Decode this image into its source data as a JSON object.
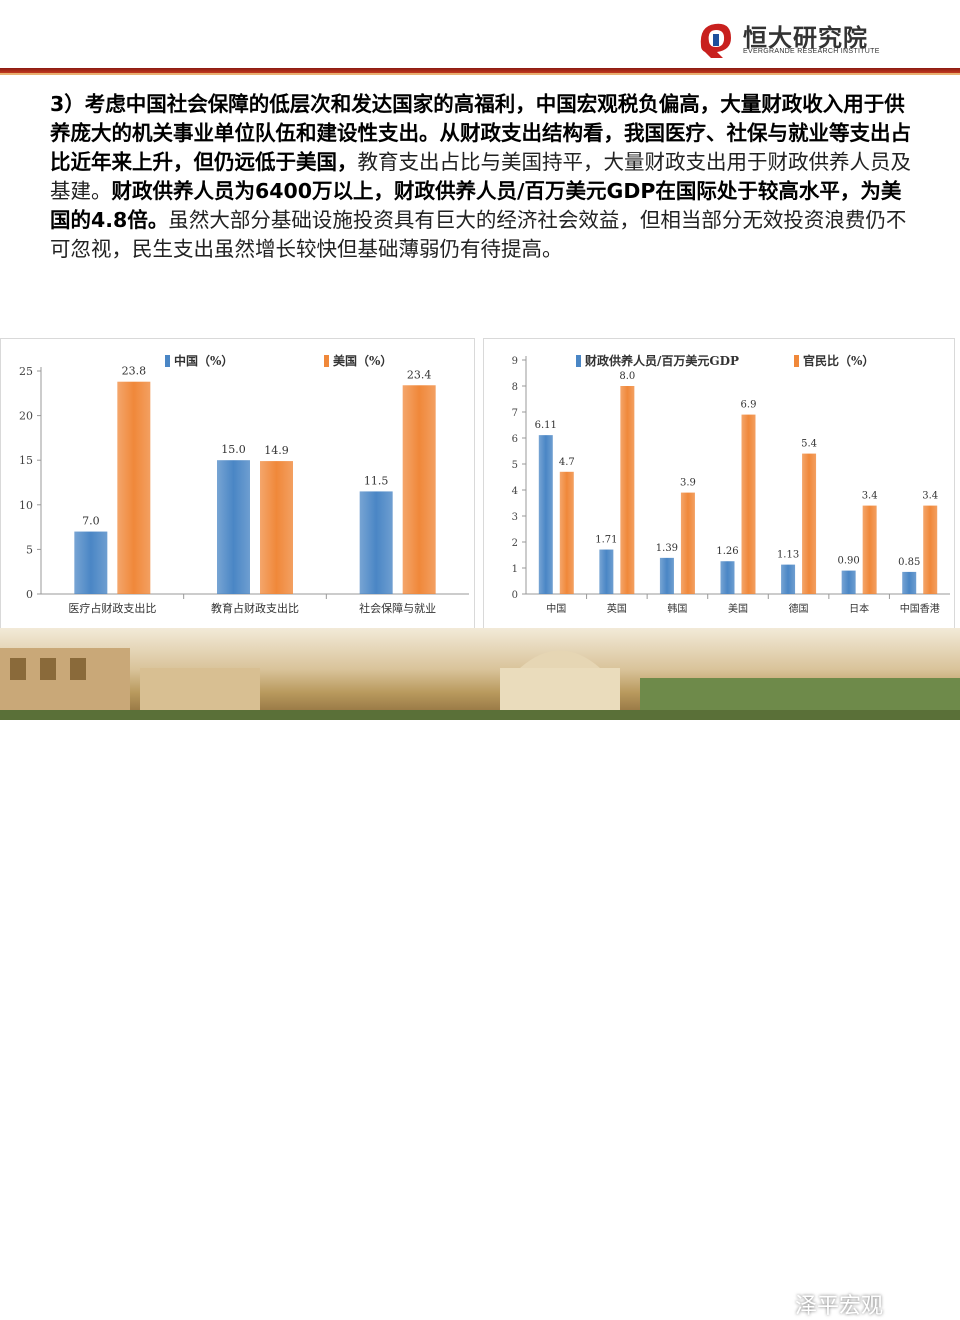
{
  "header": {
    "brand_cn": "恒大研究院",
    "brand_en": "EVERGRANDE RESEARCH INSTITUTE"
  },
  "paragraph": {
    "bold_part": "3）考虑中国社会保障的低层次和发达国家的高福利，中国宏观税负偏高，大量财政收入用于供养庞大的机关事业单位队伍和建设性支出。从财政支出结构看，我国医疗、社保与就业等支出占比近年来上升，但仍远低于美国，",
    "normal_part_1": "教育支出占比与美国持平，大量财政支出用于财政供养人员及基建。",
    "bold_part_2": "财政供养人员为6400万以上，财政供养人员/百万美元GDP在国际处于较高水平，为美国的4.8倍。",
    "normal_part_2": "虽然大部分基础设施投资具有巨大的经济社会效益，但相当部分无效投资浪费仍不可忽视，民生支出虽然增长较快但基础薄弱仍有待提高。"
  },
  "colors": {
    "blue": "#4a86c5",
    "orange": "#f0883a",
    "axis": "#999999"
  },
  "chart_data": [
    {
      "type": "bar",
      "categories": [
        "医疗占财政支出比",
        "教育占财政支出比",
        "社会保障与就业"
      ],
      "series": [
        {
          "name": "中国（%）",
          "values": [
            7.0,
            15.0,
            11.5
          ],
          "labels": [
            "7.0",
            "15.0",
            "11.5"
          ]
        },
        {
          "name": "美国（%）",
          "values": [
            23.8,
            14.9,
            23.4
          ],
          "labels": [
            "23.8",
            "14.9",
            "23.4"
          ]
        }
      ],
      "ylim": [
        0,
        25
      ],
      "yticks": [
        "0",
        "5",
        "10",
        "15",
        "20",
        "25"
      ],
      "legend": "top"
    },
    {
      "type": "bar",
      "categories": [
        "中国",
        "英国",
        "韩国",
        "美国",
        "德国",
        "日本",
        "中国香港"
      ],
      "series": [
        {
          "name": "财政供养人员/百万美元GDP",
          "values": [
            6.11,
            1.71,
            1.39,
            1.26,
            1.13,
            0.9,
            0.85
          ],
          "labels": [
            "6.11",
            "1.71",
            "1.39",
            "1.26",
            "1.13",
            "0.90",
            "0.85"
          ]
        },
        {
          "name": "官民比（%）",
          "values": [
            4.7,
            8.0,
            3.9,
            6.9,
            5.4,
            3.4,
            3.4
          ],
          "labels": [
            "4.7",
            "8.0",
            "3.9",
            "6.9",
            "5.4",
            "3.4",
            "3.4"
          ]
        }
      ],
      "ylim": [
        0,
        9
      ],
      "yticks": [
        "0",
        "1",
        "2",
        "3",
        "4",
        "5",
        "6",
        "7",
        "8",
        "9"
      ],
      "legend": "top"
    }
  ],
  "footer": {
    "watermark": "泽平宏观"
  }
}
